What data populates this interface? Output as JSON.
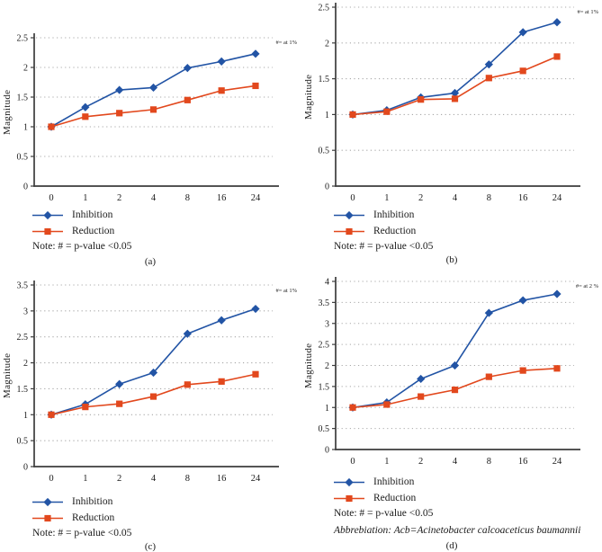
{
  "figure": {
    "background": "#ffffff",
    "axis_color": "#3c3c3c",
    "grid_color": "#a8a8a8",
    "inhibition_color": "#2254a5",
    "reduction_color": "#e2481d"
  },
  "chart_data": [
    {
      "type": "line",
      "panel_label": "(a)",
      "annotation": "#= at 1%",
      "title": "",
      "xlabel": "",
      "ylabel": "Magnitude",
      "categories": [
        "0",
        "1",
        "2",
        "4",
        "8",
        "16",
        "24"
      ],
      "ylim": [
        0,
        2.5
      ],
      "ytick_step": 0.5,
      "grid": "dotted-horizontal",
      "legend_position": "below-left",
      "series": [
        {
          "name": "Inhibition",
          "marker": "diamond",
          "color": "#2254a5",
          "values": [
            1.0,
            1.33,
            1.62,
            1.66,
            1.99,
            2.1,
            2.23
          ]
        },
        {
          "name": "Reduction",
          "marker": "square",
          "color": "#e2481d",
          "values": [
            1.0,
            1.17,
            1.23,
            1.29,
            1.45,
            1.61,
            1.69
          ]
        }
      ],
      "note": "Note: # = p-value <0.05"
    },
    {
      "type": "line",
      "panel_label": "(b)",
      "annotation": "#= at 1%",
      "title": "",
      "xlabel": "",
      "ylabel": "Magnitude",
      "categories": [
        "0",
        "1",
        "2",
        "4",
        "8",
        "16",
        "24"
      ],
      "ylim": [
        0,
        2.5
      ],
      "ytick_step": 0.5,
      "grid": "dotted-horizontal",
      "legend_position": "below-left",
      "series": [
        {
          "name": "Inhibition",
          "marker": "diamond",
          "color": "#2254a5",
          "values": [
            1.0,
            1.06,
            1.24,
            1.3,
            1.7,
            2.15,
            2.29
          ]
        },
        {
          "name": "Reduction",
          "marker": "square",
          "color": "#e2481d",
          "values": [
            1.0,
            1.04,
            1.21,
            1.22,
            1.51,
            1.61,
            1.81
          ]
        }
      ],
      "note": "Note: # = p-value <0.05"
    },
    {
      "type": "line",
      "panel_label": "(c)",
      "annotation": "#= at 1%",
      "title": "",
      "xlabel": "",
      "ylabel": "Magnitude",
      "categories": [
        "0",
        "1",
        "2",
        "4",
        "8",
        "16",
        "24"
      ],
      "ylim": [
        0,
        3.5
      ],
      "ytick_step": 0.5,
      "grid": "dotted-horizontal",
      "legend_position": "below-left",
      "series": [
        {
          "name": "Inhibition",
          "marker": "diamond",
          "color": "#2254a5",
          "values": [
            1.0,
            1.2,
            1.59,
            1.81,
            2.56,
            2.82,
            3.04
          ]
        },
        {
          "name": "Reduction",
          "marker": "square",
          "color": "#e2481d",
          "values": [
            1.0,
            1.15,
            1.21,
            1.35,
            1.58,
            1.64,
            1.78
          ]
        }
      ],
      "note": "Note: # = p-value <0.05"
    },
    {
      "type": "line",
      "panel_label": "(d)",
      "annotation": "#= at 2 %",
      "title": "",
      "xlabel": "",
      "ylabel": "Magnitude",
      "categories": [
        "0",
        "1",
        "2",
        "4",
        "8",
        "16",
        "24"
      ],
      "ylim": [
        0,
        4
      ],
      "ytick_step": 0.5,
      "grid": "dotted-horizontal",
      "legend_position": "below-left",
      "series": [
        {
          "name": "Inhibition",
          "marker": "diamond",
          "color": "#2254a5",
          "values": [
            1.0,
            1.12,
            1.68,
            2.0,
            3.25,
            3.55,
            3.7
          ]
        },
        {
          "name": "Reduction",
          "marker": "square",
          "color": "#e2481d",
          "values": [
            1.0,
            1.07,
            1.26,
            1.42,
            1.73,
            1.88,
            1.93
          ]
        }
      ],
      "note": "Note: # = p-value <0.05",
      "abbreviation": "Abbrebiation: Acb=Acinetobacter calcoaceticus baumannii"
    }
  ]
}
